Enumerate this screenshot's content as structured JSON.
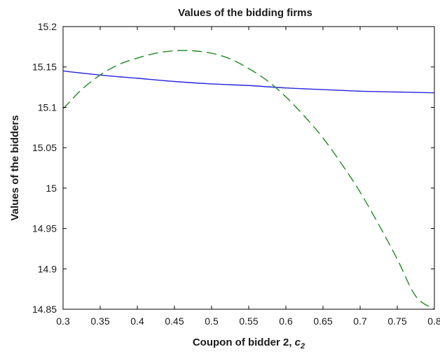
{
  "chart_data": {
    "type": "line",
    "title": "Values of the bidding firms",
    "xlabel_text": "Coupon of bidder 2, ",
    "xlabel_symbol": "c",
    "xlabel_subscript": "2",
    "ylabel": "Values of the bidders",
    "xlim": [
      0.3,
      0.8
    ],
    "ylim": [
      14.85,
      15.2
    ],
    "xticks": [
      0.3,
      0.35,
      0.4,
      0.45,
      0.5,
      0.55,
      0.6,
      0.65,
      0.7,
      0.75,
      0.8
    ],
    "xtick_labels": [
      "0.3",
      "0.35",
      "0.4",
      "0.45",
      "0.5",
      "0.55",
      "0.6",
      "0.65",
      "0.7",
      "0.75",
      "0.8"
    ],
    "yticks": [
      14.85,
      14.9,
      14.95,
      15.0,
      15.05,
      15.1,
      15.15,
      15.2
    ],
    "ytick_labels": [
      "14.85",
      "14.9",
      "14.95",
      "15",
      "15.05",
      "15.1",
      "15.15",
      "15.2"
    ],
    "grid": false,
    "legend": "none",
    "series": [
      {
        "style": "solid",
        "color": "#2424e0",
        "x": [
          0.3,
          0.35,
          0.4,
          0.45,
          0.5,
          0.55,
          0.6,
          0.65,
          0.7,
          0.75,
          0.8
        ],
        "y": [
          15.145,
          15.14,
          15.136,
          15.132,
          15.129,
          15.127,
          15.124,
          15.122,
          15.12,
          15.119,
          15.118
        ]
      },
      {
        "style": "dashed",
        "color": "#1f8a1f",
        "x": [
          0.3,
          0.325,
          0.35,
          0.375,
          0.4,
          0.425,
          0.45,
          0.475,
          0.5,
          0.525,
          0.55,
          0.575,
          0.6,
          0.625,
          0.65,
          0.675,
          0.7,
          0.725,
          0.75,
          0.775,
          0.8
        ],
        "y": [
          15.098,
          15.122,
          15.14,
          15.153,
          15.161,
          15.167,
          15.17,
          15.17,
          15.167,
          15.16,
          15.148,
          15.133,
          15.113,
          15.089,
          15.062,
          15.03,
          14.995,
          14.955,
          14.912,
          14.866,
          14.85
        ]
      }
    ]
  }
}
